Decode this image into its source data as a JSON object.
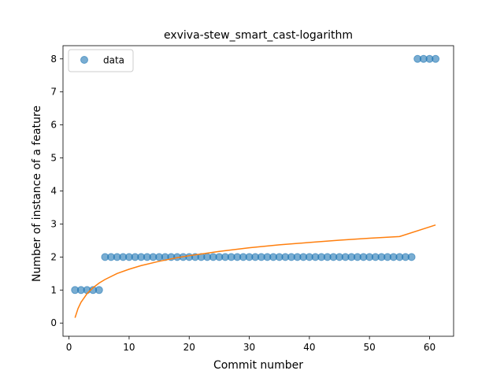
{
  "chart_data": {
    "type": "scatter",
    "title": "exviva-stew_smart_cast-logarithm",
    "xlabel": "Commit number",
    "ylabel": "Number of instance of a feature",
    "xlim": [
      -1,
      64
    ],
    "ylim": [
      -0.4,
      8.4
    ],
    "xticks": [
      0,
      10,
      20,
      30,
      40,
      50,
      60
    ],
    "yticks": [
      0,
      1,
      2,
      3,
      4,
      5,
      6,
      7,
      8
    ],
    "grid": false,
    "legend": {
      "placement": "top-left",
      "entries": [
        "data"
      ]
    },
    "colors": {
      "data": "#1f77b4",
      "fit": "#ff7f0e"
    },
    "series": [
      {
        "name": "data",
        "kind": "scatter",
        "x": [
          1,
          2,
          3,
          4,
          5,
          6,
          7,
          8,
          9,
          10,
          11,
          12,
          13,
          14,
          15,
          16,
          17,
          18,
          19,
          20,
          21,
          22,
          23,
          24,
          25,
          26,
          27,
          28,
          29,
          30,
          31,
          32,
          33,
          34,
          35,
          36,
          37,
          38,
          39,
          40,
          41,
          42,
          43,
          44,
          45,
          46,
          47,
          48,
          49,
          50,
          51,
          52,
          53,
          54,
          55,
          56,
          57,
          58,
          59,
          60,
          61
        ],
        "y": [
          1,
          1,
          1,
          1,
          1,
          2,
          2,
          2,
          2,
          2,
          2,
          2,
          2,
          2,
          2,
          2,
          2,
          2,
          2,
          2,
          2,
          2,
          2,
          2,
          2,
          2,
          2,
          2,
          2,
          2,
          2,
          2,
          2,
          2,
          2,
          2,
          2,
          2,
          2,
          2,
          2,
          2,
          2,
          2,
          2,
          2,
          2,
          2,
          2,
          2,
          2,
          2,
          2,
          2,
          2,
          2,
          2,
          8,
          8,
          8,
          8
        ]
      },
      {
        "kind": "line",
        "x": [
          1,
          1.5,
          2,
          3,
          4,
          5,
          6,
          8,
          10,
          12,
          15,
          18,
          20,
          25,
          30,
          35,
          40,
          45,
          50,
          55,
          61
        ],
        "y": [
          0.16,
          0.44,
          0.63,
          0.89,
          1.07,
          1.21,
          1.32,
          1.5,
          1.63,
          1.74,
          1.87,
          1.98,
          2.04,
          2.17,
          2.28,
          2.37,
          2.44,
          2.51,
          2.57,
          2.62,
          2.97
        ]
      }
    ]
  }
}
